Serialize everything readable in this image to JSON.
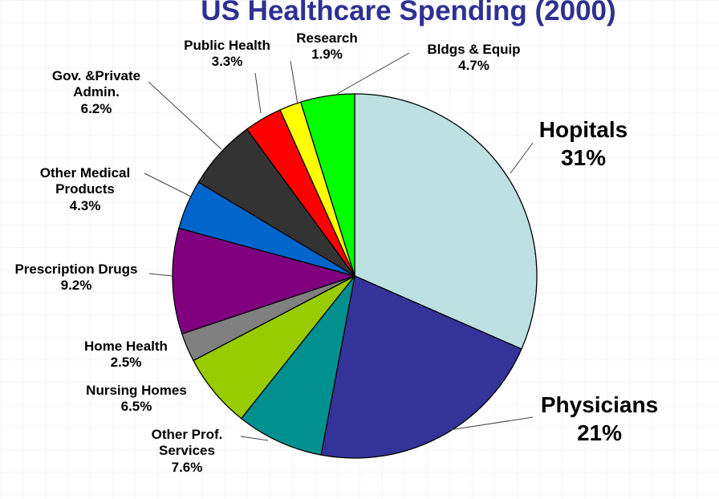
{
  "chart_data": {
    "type": "pie",
    "title": "US Healthcare Spending (2000)",
    "slices": [
      {
        "label": "Hopitals",
        "value": 31,
        "value_label": "31%",
        "color": "#bde0e2"
      },
      {
        "label": "Physicians",
        "value": 21,
        "value_label": "21%",
        "color": "#333399"
      },
      {
        "label": "Other Prof. Services",
        "value": 7.6,
        "value_label": "7.6%",
        "color": "#009090"
      },
      {
        "label": "Nursing Homes",
        "value": 6.5,
        "value_label": "6.5%",
        "color": "#99cc00"
      },
      {
        "label": "Home Health",
        "value": 2.5,
        "value_label": "2.5%",
        "color": "#808080"
      },
      {
        "label": "Prescription Drugs",
        "value": 9.2,
        "value_label": "9.2%",
        "color": "#800080"
      },
      {
        "label": "Other Medical Products",
        "value": 4.3,
        "value_label": "4.3%",
        "color": "#0066cc"
      },
      {
        "label": "Gov. &Private Admin.",
        "value": 6.2,
        "value_label": "6.2%",
        "color": "#333333"
      },
      {
        "label": "Public Health",
        "value": 3.3,
        "value_label": "3.3%",
        "color": "#ff0000"
      },
      {
        "label": "Research",
        "value": 1.9,
        "value_label": "1.9%",
        "color": "#ffff00"
      },
      {
        "label": "Bldgs & Equip",
        "value": 4.7,
        "value_label": "4.7%",
        "color": "#00ff00"
      }
    ],
    "label_lines": {
      "hospitals": [
        "Hopitals",
        "31%"
      ],
      "physicians": [
        "Physicians",
        "21%"
      ],
      "other_prof": [
        "Other Prof.",
        "Services",
        "7.6%"
      ],
      "nursing": [
        "Nursing Homes",
        "6.5%"
      ],
      "home_health": [
        "Home Health",
        "2.5%"
      ],
      "rx": [
        "Prescription Drugs",
        "9.2%"
      ],
      "other_med": [
        "Other Medical",
        "Products",
        "4.3%"
      ],
      "admin": [
        "Gov. &Private",
        "Admin.",
        "6.2%"
      ],
      "public_health": [
        "Public Health",
        "3.3%"
      ],
      "research": [
        "Research",
        "1.9%"
      ],
      "bldgs": [
        "Bldgs & Equip",
        "4.7%"
      ]
    }
  }
}
